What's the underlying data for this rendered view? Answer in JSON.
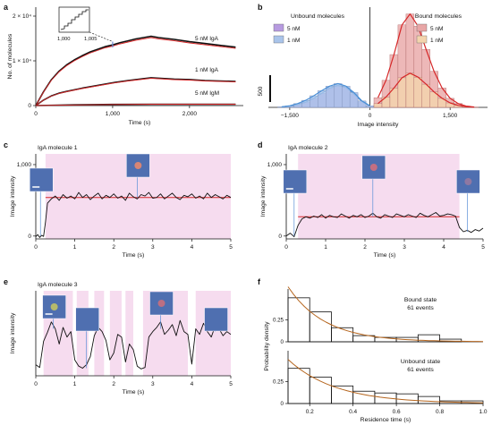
{
  "figure": {
    "panel_letters": [
      "a",
      "b",
      "c",
      "d",
      "e",
      "f"
    ]
  },
  "chart_data": [
    {
      "panel": "a",
      "type": "line",
      "xlabel": "Time (s)",
      "ylabel": "No. of molecules",
      "xlim": [
        0,
        2700
      ],
      "ylim": [
        0,
        22000
      ],
      "xticks": [
        0,
        1000,
        2000
      ],
      "xtick_labels": [
        "0",
        "1,000",
        "2,000"
      ],
      "yticks": [
        0,
        10000,
        20000
      ],
      "ytick_labels": [
        "0",
        "1 × 10⁴",
        "2 × 10⁴"
      ],
      "inset": {
        "xtick_labels": [
          "1,000",
          "1,005"
        ]
      },
      "colors": {
        "data": "#111111",
        "fit": "#d62728",
        "marker": "#6b8cd6"
      },
      "series": [
        {
          "name": "5 nM IgA",
          "x": [
            0,
            100,
            200,
            300,
            400,
            500,
            600,
            700,
            800,
            900,
            1000,
            1100,
            1200,
            1300,
            1400,
            1500,
            1600,
            1800,
            2000,
            2200,
            2400,
            2600
          ],
          "values": [
            0,
            3000,
            5600,
            7500,
            8900,
            10000,
            10900,
            11700,
            12300,
            12900,
            13300,
            13800,
            14200,
            14600,
            14900,
            15200,
            14900,
            14500,
            14000,
            13600,
            13200,
            12800
          ]
        },
        {
          "name": "1 nM IgA",
          "x": [
            0,
            100,
            200,
            300,
            400,
            600,
            800,
            1000,
            1200,
            1400,
            1500,
            1600,
            1800,
            2000,
            2200,
            2400,
            2600
          ],
          "values": [
            0,
            1200,
            2100,
            2700,
            3100,
            3800,
            4400,
            5000,
            5500,
            5900,
            6100,
            6000,
            5800,
            5700,
            5500,
            5400,
            5300
          ]
        },
        {
          "name": "5 nM IgM",
          "x": [
            0,
            500,
            1000,
            1500,
            2000,
            2600
          ],
          "values": [
            0,
            150,
            250,
            300,
            300,
            300
          ]
        }
      ]
    },
    {
      "panel": "b",
      "type": "bar",
      "xlabel": "Image intensity",
      "xlim": [
        -1900,
        2200
      ],
      "xticks": [
        -1500,
        0,
        1500
      ],
      "xtick_labels": [
        "−1,500",
        "0",
        "1,500"
      ],
      "scale_bar_label": "500",
      "left_title": "Unbound molecules",
      "right_title": "Bound molecules",
      "colors": {
        "unbound_5nM": "#b79be0",
        "unbound_1nM": "#a9c4ea",
        "bound_5nM": "#e8a6a6",
        "bound_1nM": "#f3d4ad",
        "fit": "#d62728",
        "fit_left": "#4a8fd6"
      },
      "series": [
        {
          "name": "5 nM",
          "side": "unbound",
          "x": [
            -1650,
            -1500,
            -1350,
            -1200,
            -1050,
            -900,
            -750,
            -600,
            -450,
            -300,
            -150,
            0
          ],
          "values": [
            5,
            15,
            40,
            80,
            140,
            220,
            300,
            340,
            310,
            210,
            90,
            20
          ]
        },
        {
          "name": "1 nM",
          "side": "unbound",
          "x": [
            -1650,
            -1500,
            -1350,
            -1200,
            -1050,
            -900,
            -750,
            -600,
            -450,
            -300,
            -150,
            0
          ],
          "values": [
            8,
            25,
            60,
            110,
            180,
            260,
            330,
            370,
            330,
            230,
            100,
            25
          ]
        },
        {
          "name": "5 nM",
          "side": "bound",
          "x": [
            150,
            300,
            450,
            600,
            750,
            900,
            1050,
            1200,
            1350,
            1500,
            1650,
            1800,
            1950
          ],
          "values": [
            150,
            420,
            820,
            1280,
            1450,
            1260,
            900,
            560,
            300,
            140,
            60,
            20,
            5
          ]
        },
        {
          "name": "1 nM",
          "side": "bound",
          "x": [
            150,
            300,
            450,
            600,
            750,
            900,
            1050,
            1200,
            1350,
            1500,
            1650,
            1800,
            1950
          ],
          "values": [
            60,
            160,
            300,
            460,
            530,
            470,
            360,
            240,
            140,
            70,
            30,
            10,
            3
          ]
        }
      ]
    },
    {
      "panel": "c",
      "type": "line",
      "title": "IgA molecule 1",
      "xlabel": "Time (s)",
      "ylabel": "Image intensity",
      "xlim": [
        0,
        5
      ],
      "ylim": [
        -40,
        1150
      ],
      "xticks": [
        0,
        1,
        2,
        3,
        4,
        5
      ],
      "yticks": [
        0,
        1000
      ],
      "ytick_labels": [
        "0",
        "1,000"
      ],
      "bound_intervals": [
        [
          0.25,
          5.0
        ]
      ],
      "fit_level": 540,
      "colors": {
        "trace": "#111111",
        "fit": "#d62728",
        "shade": "#f6dcef"
      },
      "series": [
        {
          "x": [
            0,
            0.05,
            0.1,
            0.15,
            0.2,
            0.25,
            0.3,
            0.4,
            0.5,
            0.6,
            0.7,
            0.8,
            0.9,
            1.0,
            1.1,
            1.2,
            1.3,
            1.4,
            1.5,
            1.6,
            1.7,
            1.8,
            1.9,
            2.0,
            2.1,
            2.2,
            2.3,
            2.4,
            2.5,
            2.6,
            2.7,
            2.8,
            2.9,
            3.0,
            3.1,
            3.2,
            3.3,
            3.4,
            3.5,
            3.6,
            3.7,
            3.8,
            3.9,
            4.0,
            4.1,
            4.2,
            4.3,
            4.4,
            4.5,
            4.6,
            4.7,
            4.8,
            4.9,
            5.0
          ],
          "values": [
            -10,
            20,
            -20,
            10,
            -5,
            200,
            460,
            520,
            560,
            500,
            580,
            530,
            560,
            520,
            610,
            540,
            580,
            510,
            560,
            600,
            520,
            570,
            540,
            590,
            530,
            560,
            500,
            600,
            550,
            520,
            580,
            560,
            610,
            530,
            540,
            590,
            520,
            560,
            600,
            540,
            510,
            570,
            550,
            590,
            530,
            560,
            520,
            600,
            540,
            580,
            550,
            520,
            570,
            540
          ]
        }
      ]
    },
    {
      "panel": "d",
      "type": "line",
      "title": "IgA molecule 2",
      "xlabel": "Time (s)",
      "ylabel": "Image intensity",
      "xlim": [
        0,
        5
      ],
      "ylim": [
        -40,
        1150
      ],
      "xticks": [
        0,
        1,
        2,
        3,
        4,
        5
      ],
      "yticks": [
        0,
        1000
      ],
      "ytick_labels": [
        "0",
        "1,000"
      ],
      "bound_intervals": [
        [
          0.3,
          4.4
        ]
      ],
      "fit_level": 270,
      "colors": {
        "trace": "#111111",
        "fit": "#d62728",
        "shade": "#f6dcef"
      },
      "series": [
        {
          "x": [
            0,
            0.1,
            0.2,
            0.3,
            0.4,
            0.5,
            0.6,
            0.7,
            0.8,
            0.9,
            1.0,
            1.1,
            1.2,
            1.3,
            1.4,
            1.5,
            1.6,
            1.7,
            1.8,
            1.9,
            2.0,
            2.1,
            2.2,
            2.3,
            2.4,
            2.5,
            2.6,
            2.7,
            2.8,
            2.9,
            3.0,
            3.1,
            3.2,
            3.3,
            3.4,
            3.5,
            3.6,
            3.7,
            3.8,
            3.9,
            4.0,
            4.1,
            4.2,
            4.3,
            4.4,
            4.5,
            4.6,
            4.7,
            4.8,
            4.9,
            5.0
          ],
          "values": [
            0,
            40,
            -10,
            150,
            240,
            270,
            250,
            280,
            260,
            300,
            250,
            290,
            270,
            260,
            310,
            280,
            250,
            290,
            270,
            300,
            260,
            280,
            320,
            270,
            250,
            300,
            280,
            260,
            310,
            290,
            270,
            300,
            280,
            260,
            320,
            290,
            270,
            300,
            330,
            280,
            290,
            310,
            300,
            280,
            120,
            60,
            80,
            50,
            90,
            70,
            110
          ]
        }
      ]
    },
    {
      "panel": "e",
      "type": "line",
      "title": "IgA molecule 3",
      "xlabel": "Time (s)",
      "ylabel": "Image intensity",
      "xlim": [
        0,
        5
      ],
      "ylim": [
        -80,
        1150
      ],
      "xticks": [
        0,
        1,
        2,
        3,
        4,
        5
      ],
      "bound_intervals": [
        [
          0.2,
          0.95
        ],
        [
          1.05,
          1.35
        ],
        [
          1.5,
          1.75
        ],
        [
          1.9,
          2.2
        ],
        [
          2.3,
          2.5
        ],
        [
          2.75,
          3.9
        ],
        [
          4.1,
          5.0
        ]
      ],
      "colors": {
        "trace": "#111111",
        "fit": "#d62728",
        "shade": "#f6dcef"
      },
      "series": [
        {
          "x": [
            0,
            0.1,
            0.2,
            0.3,
            0.4,
            0.5,
            0.6,
            0.7,
            0.8,
            0.9,
            1.0,
            1.1,
            1.2,
            1.3,
            1.4,
            1.5,
            1.6,
            1.7,
            1.8,
            1.9,
            2.0,
            2.1,
            2.2,
            2.3,
            2.4,
            2.5,
            2.6,
            2.7,
            2.8,
            2.9,
            3.0,
            3.1,
            3.2,
            3.3,
            3.4,
            3.5,
            3.6,
            3.7,
            3.8,
            3.9,
            4.0,
            4.1,
            4.2,
            4.3,
            4.4,
            4.5,
            4.6,
            4.7,
            4.8,
            4.9,
            5.0
          ],
          "values": [
            80,
            40,
            420,
            550,
            700,
            600,
            380,
            620,
            480,
            560,
            150,
            60,
            30,
            80,
            200,
            500,
            620,
            560,
            430,
            150,
            250,
            520,
            480,
            120,
            380,
            300,
            60,
            20,
            40,
            480,
            560,
            620,
            700,
            520,
            580,
            660,
            500,
            720,
            560,
            520,
            90,
            600,
            520,
            680,
            560,
            480,
            640,
            600,
            500,
            560,
            520
          ]
        }
      ]
    },
    {
      "panel": "f",
      "type": "bar",
      "xlabel": "Residence time (s)",
      "ylabel": "Probability density",
      "xlim": [
        0.1,
        1.0
      ],
      "xticks": [
        0.2,
        0.4,
        0.6,
        0.8,
        1.0
      ],
      "xtick_labels": [
        "0.2",
        "0.4",
        "0.6",
        "0.8",
        "1.0"
      ],
      "yticks": [
        0,
        0.25
      ],
      "ytick_labels": [
        "0",
        "0.25"
      ],
      "colors": {
        "bars": "#111111",
        "fit": "#b5651d"
      },
      "series": [
        {
          "name": "Bound state",
          "annotation": "61 events",
          "bins": [
            0.1,
            0.2,
            0.3,
            0.4,
            0.5,
            0.6,
            0.7,
            0.8,
            0.9
          ],
          "values": [
            0.5,
            0.34,
            0.16,
            0.07,
            0.05,
            0.05,
            0.08,
            0.03,
            0.0
          ]
        },
        {
          "name": "Unbound state",
          "annotation": "61 events",
          "bins": [
            0.1,
            0.2,
            0.3,
            0.4,
            0.5,
            0.6,
            0.7,
            0.8,
            0.9
          ],
          "values": [
            0.4,
            0.3,
            0.2,
            0.14,
            0.12,
            0.11,
            0.08,
            0.03,
            0.03
          ]
        }
      ]
    }
  ]
}
